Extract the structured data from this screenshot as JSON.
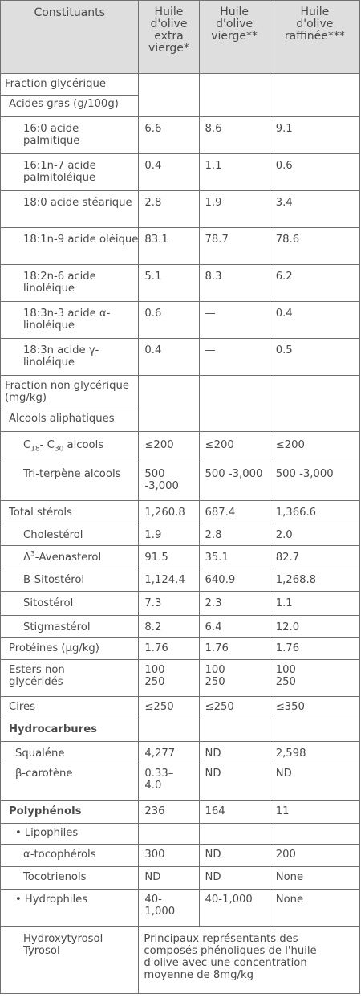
{
  "headers": [
    "Constituants",
    "Huile d'olive extra vierge*",
    "Huile d'olive vierge**",
    "Huile d'olive raffinée***"
  ],
  "header_lines": {
    "c1": [
      "Constituants"
    ],
    "c2": [
      "Huile",
      "d'olive",
      "extra",
      "vierge*"
    ],
    "c3": [
      "Huile",
      "d'olive",
      "vierge**"
    ],
    "c4": [
      "Huile",
      "d'olive",
      "raffinée***"
    ]
  },
  "sections": {
    "glycerique": "Fraction glycérique",
    "acides": "Acides gras (g/100g)",
    "non_glycerique": "Fraction non glycérique (mg/kg)",
    "alcools": "Alcools aliphatiques"
  },
  "acides_gras": [
    {
      "name": "16:0 acide palmitique",
      "v": [
        "6.6",
        "8.6",
        "9.1"
      ]
    },
    {
      "name": "16:1n-7 acide palmitoléique",
      "v": [
        "0.4",
        "1.1",
        "0.6"
      ]
    },
    {
      "name": "18:0 acide stéarique",
      "v": [
        "2.8",
        "1.9",
        "3.4"
      ]
    },
    {
      "name": "18:1n-9 acide oléique",
      "v": [
        "83.1",
        "78.7",
        "78.6"
      ]
    },
    {
      "name": "18:2n-6 acide linoléique",
      "v": [
        "5.1",
        "8.3",
        "6.2"
      ]
    },
    {
      "name": "18:3n-3 acide α-linoléique",
      "v": [
        "0.6",
        "—",
        "0.4"
      ]
    },
    {
      "name": "18:3n acide γ-linoléique",
      "v": [
        "0.4",
        "—",
        "0.5"
      ]
    }
  ],
  "alcools_row": {
    "name_prefix": "C",
    "sub1": "18",
    "mid": "- C",
    "sub2": "30",
    "suffix": " alcools",
    "v": [
      "≤200",
      "≤200",
      "≤200"
    ]
  },
  "triterpene": {
    "name": "Tri-terpène alcools",
    "v": [
      "500 -3,000",
      "500 -3,000",
      "500 -3,000"
    ]
  },
  "sterols": {
    "total": {
      "name": "Total stérols",
      "v": [
        "1,260.8",
        "687.4",
        "1,366.6"
      ]
    },
    "cholesterol": {
      "name": "Cholestérol",
      "v": [
        "1.9",
        "2.8",
        "2.0"
      ]
    },
    "avenasterol": {
      "name_prefix": "Δ",
      "sup": "3",
      "name_suffix": "-Avenasterol",
      "v": [
        "91.5",
        "35.1",
        "82.7"
      ]
    },
    "b_sitosterol": {
      "name": "B-Sitostérol",
      "v": [
        "1,124.4",
        "640.9",
        "1,268.8"
      ]
    },
    "sitosterol": {
      "name": "Sitostérol",
      "v": [
        "7.3",
        "2.3",
        "1.1"
      ]
    },
    "stigmasterol": {
      "name": "Stigmastérol",
      "v": [
        "8.2",
        "6.4",
        "12.0"
      ]
    }
  },
  "proteines": {
    "name": "Protéines (μg/kg)",
    "v": [
      "1.76",
      "1.76",
      "1.76"
    ]
  },
  "esters": {
    "name": "Esters non glycéridés",
    "v": [
      "100 250",
      "100 250",
      "100 250"
    ]
  },
  "cires": {
    "name": "Cires",
    "v": [
      "≤250",
      "≤250",
      "≤350"
    ]
  },
  "hydrocarbures": {
    "title": "Hydrocarbures",
    "squalene": {
      "name": "Squaléne",
      "v": [
        "4,277",
        "ND",
        "2,598"
      ]
    },
    "carotene": {
      "name": "β-carotène",
      "v": [
        "0.33– 4.0",
        "ND",
        "ND"
      ]
    }
  },
  "polyphenols": {
    "title": "Polyphénols",
    "v": [
      "236",
      "164",
      "11"
    ],
    "lipophiles": "Lipophiles",
    "tocopherols": {
      "name": "α-tocophérols",
      "v": [
        "300",
        "ND",
        "200"
      ]
    },
    "tocotrienols": {
      "name": "Tocotrienols",
      "v": [
        "ND",
        "ND",
        "None"
      ]
    },
    "hydrophiles": {
      "name": "Hydrophiles",
      "v": [
        "40- 1,000",
        "40-1,000",
        "None"
      ]
    }
  },
  "hydroxytyrosol": {
    "name": "Hydroxytyrosol Tyrosol",
    "note": "Principaux représentants des composés phénoliques de l'huile d'olive avec une concentration moyenne de 8mg/kg"
  }
}
